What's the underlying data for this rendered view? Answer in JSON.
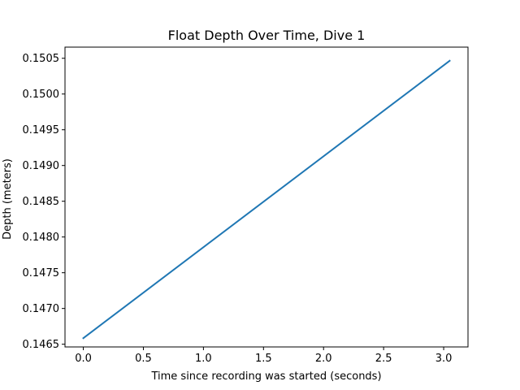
{
  "chart_data": {
    "type": "line",
    "title": "Float Depth Over Time, Dive 1",
    "xlabel": "Time since recording was started (seconds)",
    "ylabel": "Depth (meters)",
    "xlim": [
      -0.1525,
      3.2025
    ],
    "ylim": [
      0.146462,
      0.150656
    ],
    "xticks": [
      0.0,
      0.5,
      1.0,
      1.5,
      2.0,
      2.5,
      3.0
    ],
    "xtick_labels": [
      "0.0",
      "0.5",
      "1.0",
      "1.5",
      "2.0",
      "2.5",
      "3.0"
    ],
    "yticks": [
      0.1465,
      0.147,
      0.1475,
      0.148,
      0.1485,
      0.149,
      0.1495,
      0.15,
      0.1505
    ],
    "ytick_labels": [
      "0.1465",
      "0.1470",
      "0.1475",
      "0.1480",
      "0.1485",
      "0.1490",
      "0.1495",
      "0.1500",
      "0.1505"
    ],
    "grid": false,
    "series": [
      {
        "color": "#1f77b4",
        "x": [
          0.0,
          3.05
        ],
        "y": [
          0.146585,
          0.150465
        ]
      }
    ]
  }
}
